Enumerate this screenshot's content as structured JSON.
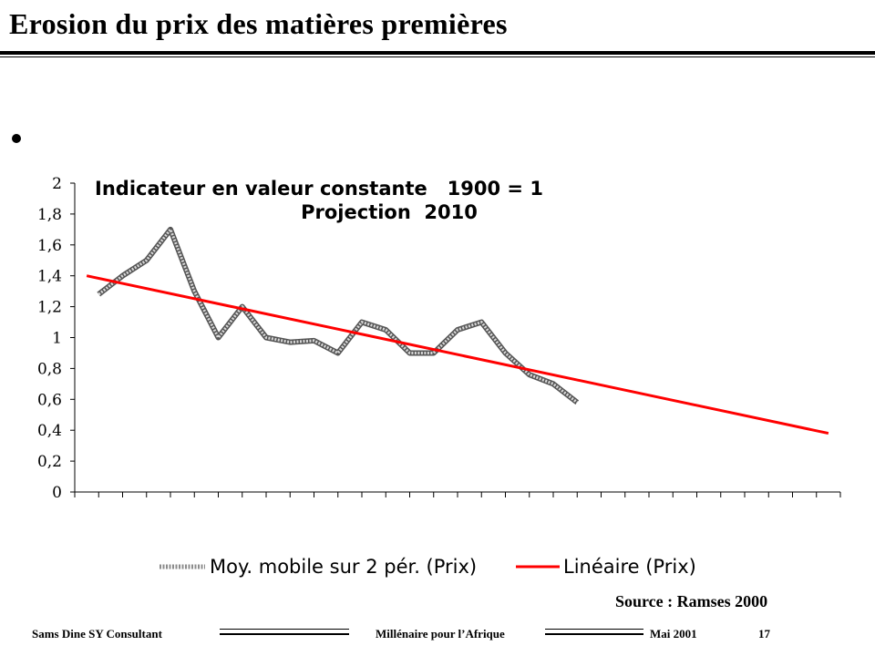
{
  "slide": {
    "title": "Erosion du prix des matières premières",
    "source": "Source : Ramses 2000",
    "footer": {
      "author": "Sams Dine SY Consultant",
      "center": "Millénaire pour l’Afrique",
      "date": "Mai 2001",
      "page": "17"
    }
  },
  "chart_data": {
    "type": "line",
    "title_line1": "Indicateur en valeur constante   1900 = 1",
    "title_line2": "Projection  2010",
    "y_ticks": [
      "0",
      "0,2",
      "0,4",
      "0,6",
      "0,8",
      "1",
      "1,2",
      "1,4",
      "1,6",
      "1,8",
      "2"
    ],
    "ylim": [
      0,
      2
    ],
    "category_count": 32,
    "grid": false,
    "legend_position": "bottom",
    "series": [
      {
        "name": "Moy. mobile sur 2 pér. (Prix)",
        "color": "#8c8c8c",
        "points": [
          [
            1,
            1.28
          ],
          [
            2,
            1.4
          ],
          [
            3,
            1.5
          ],
          [
            4,
            1.7
          ],
          [
            5,
            1.3
          ],
          [
            6,
            1.0
          ],
          [
            7,
            1.2
          ],
          [
            8,
            1.0
          ],
          [
            9,
            0.97
          ],
          [
            10,
            0.98
          ],
          [
            11,
            0.9
          ],
          [
            12,
            1.1
          ],
          [
            13,
            1.05
          ],
          [
            14,
            0.9
          ],
          [
            15,
            0.9
          ],
          [
            16,
            1.05
          ],
          [
            17,
            1.1
          ],
          [
            18,
            0.9
          ],
          [
            19,
            0.76
          ],
          [
            20,
            0.7
          ],
          [
            21,
            0.58
          ]
        ]
      },
      {
        "name": "Linéaire (Prix)",
        "color": "#ff0000",
        "points": [
          [
            0.5,
            1.4
          ],
          [
            31.5,
            0.38
          ]
        ]
      }
    ]
  }
}
